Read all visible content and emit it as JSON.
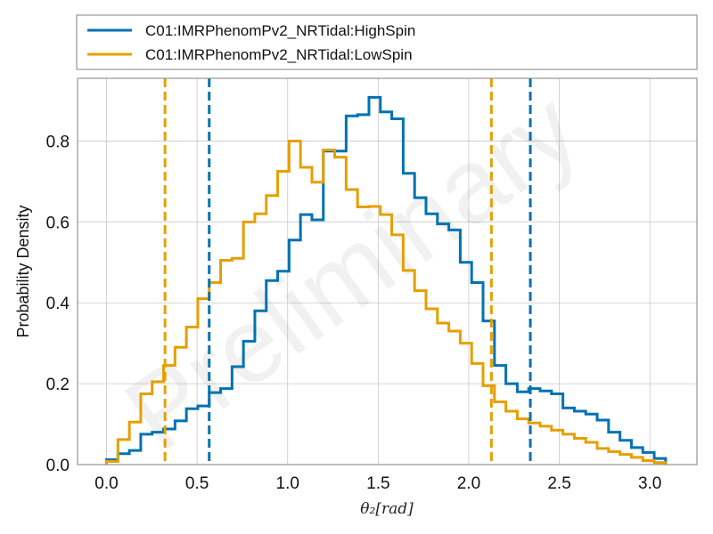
{
  "chart_data": {
    "type": "histogram",
    "title": "",
    "xlabel": "θ₂[rad]",
    "ylabel": "Probability Density",
    "xlim": [
      -0.16,
      3.26
    ],
    "ylim": [
      0.0,
      0.955
    ],
    "xticks": [
      0.0,
      0.5,
      1.0,
      1.5,
      2.0,
      2.5,
      3.0
    ],
    "xtick_labels": [
      "0.0",
      "0.5",
      "1.0",
      "1.5",
      "2.0",
      "2.5",
      "3.0"
    ],
    "yticks": [
      0.0,
      0.2,
      0.4,
      0.6,
      0.8
    ],
    "ytick_labels": [
      "0.0",
      "0.2",
      "0.4",
      "0.6",
      "0.8"
    ],
    "grid": true,
    "legend_position": "top (outside, above plot)",
    "watermark": "Preliminary",
    "bin_edges": [
      0.0,
      0.063,
      0.126,
      0.189,
      0.252,
      0.315,
      0.378,
      0.441,
      0.504,
      0.567,
      0.63,
      0.693,
      0.756,
      0.819,
      0.882,
      0.945,
      1.008,
      1.071,
      1.134,
      1.197,
      1.26,
      1.323,
      1.386,
      1.449,
      1.512,
      1.575,
      1.638,
      1.701,
      1.764,
      1.827,
      1.89,
      1.953,
      2.016,
      2.079,
      2.142,
      2.205,
      2.268,
      2.331,
      2.394,
      2.457,
      2.52,
      2.583,
      2.646,
      2.709,
      2.772,
      2.835,
      2.898,
      2.961,
      3.024,
      3.087
    ],
    "series": [
      {
        "name": "C01:IMRPhenomPv2_NRTidal:HighSpin",
        "color": "#0072b2",
        "values": [
          0.012,
          0.027,
          0.035,
          0.075,
          0.08,
          0.088,
          0.108,
          0.138,
          0.145,
          0.178,
          0.188,
          0.242,
          0.305,
          0.38,
          0.455,
          0.478,
          0.555,
          0.618,
          0.605,
          0.775,
          0.775,
          0.862,
          0.865,
          0.908,
          0.872,
          0.855,
          0.72,
          0.66,
          0.62,
          0.595,
          0.58,
          0.5,
          0.45,
          0.355,
          0.245,
          0.2,
          0.18,
          0.188,
          0.182,
          0.175,
          0.14,
          0.132,
          0.125,
          0.11,
          0.08,
          0.06,
          0.042,
          0.03,
          0.015
        ],
        "ci_lines": [
          0.567,
          2.34
        ]
      },
      {
        "name": "C01:IMRPhenomPv2_NRTidal:LowSpin",
        "color": "#e69f00",
        "values": [
          0.008,
          0.062,
          0.105,
          0.175,
          0.205,
          0.245,
          0.29,
          0.34,
          0.41,
          0.45,
          0.505,
          0.51,
          0.6,
          0.62,
          0.665,
          0.725,
          0.8,
          0.735,
          0.698,
          0.778,
          0.76,
          0.68,
          0.637,
          0.638,
          0.618,
          0.568,
          0.48,
          0.43,
          0.385,
          0.35,
          0.33,
          0.3,
          0.25,
          0.195,
          0.155,
          0.132,
          0.113,
          0.103,
          0.095,
          0.085,
          0.075,
          0.065,
          0.055,
          0.04,
          0.032,
          0.025,
          0.018,
          0.01,
          0.005
        ],
        "ci_lines": [
          0.323,
          2.125
        ]
      }
    ]
  }
}
